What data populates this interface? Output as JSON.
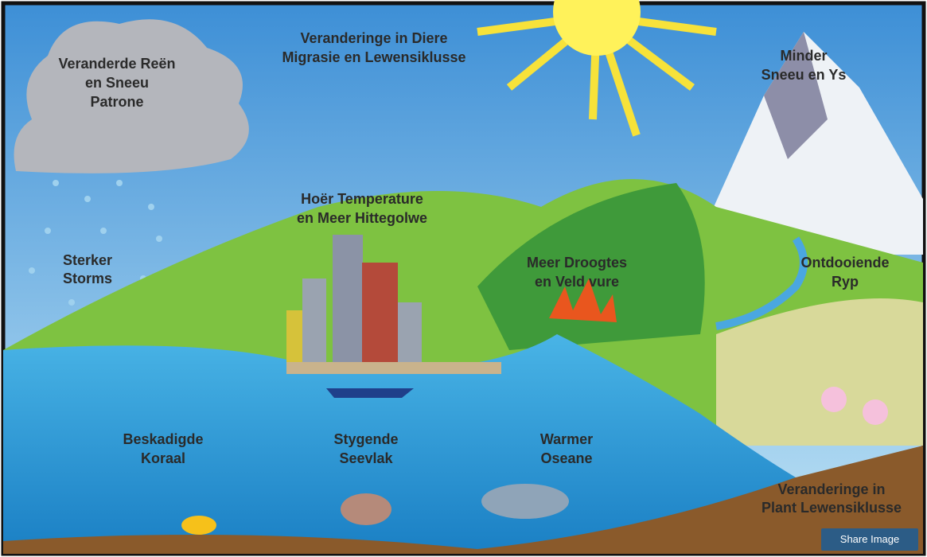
{
  "labels": [
    {
      "lines": [
        "Veranderde Reën",
        "en Sneeu",
        "Patrone"
      ]
    },
    {
      "lines": [
        "Veranderinge in Diere",
        "Migrasie en Lewensiklusse"
      ]
    },
    {
      "lines": [
        "Minder",
        "Sneeu en Ys"
      ]
    },
    {
      "lines": [
        "Hoër Temperature",
        "en Meer Hittegolwe"
      ]
    },
    {
      "lines": [
        "Sterker",
        "Storms"
      ]
    },
    {
      "lines": [
        "Meer Droogtes",
        "en Veld vure"
      ]
    },
    {
      "lines": [
        "Ontdooiende",
        "Ryp"
      ]
    },
    {
      "lines": [
        "Beskadigde",
        "Koraal"
      ]
    },
    {
      "lines": [
        "Stygende",
        "Seevlak"
      ]
    },
    {
      "lines": [
        "Warmer",
        "Oseane"
      ]
    },
    {
      "lines": [
        "Veranderinge in",
        "Plant Lewensiklusse"
      ]
    }
  ],
  "share_button": "Share Image"
}
